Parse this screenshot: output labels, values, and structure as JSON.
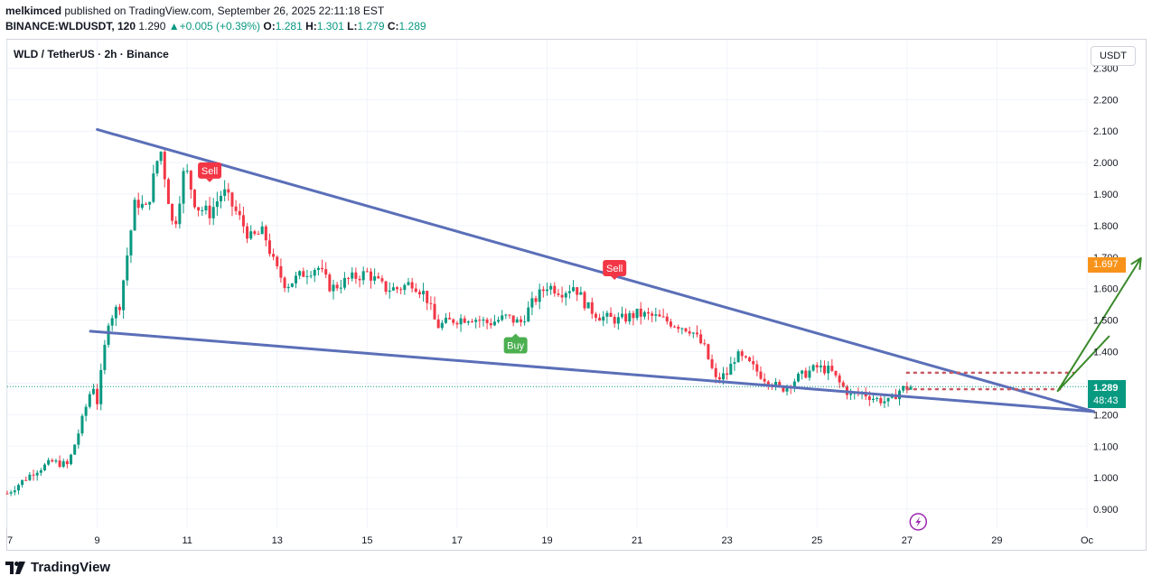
{
  "header": {
    "author": "melkimced",
    "published_text": " published on TradingView.com, September 26, 2025 22:11:18 EST",
    "ticker_interval": "BINANCE:WLDUSDT, 120",
    "last_price": "1.290",
    "change_icon": "triangle-up-icon",
    "change_text": "+0.005 (+0.39%)",
    "o_label": "O:",
    "o_value": "1.281",
    "h_label": "H:",
    "h_value": "1.301",
    "l_label": "L:",
    "l_value": "1.279",
    "c_label": "C:",
    "c_value": "1.289"
  },
  "symbol_title": "WLD / TetherUS · 2h · Binance",
  "currency_button": "USDT",
  "price_tags": {
    "target": "1.697",
    "last_price": "1.289",
    "countdown": "48:43"
  },
  "footer": {
    "brand": "TradingView",
    "logo_icon": "tradingview-logo-icon"
  },
  "colors": {
    "up": "#089981",
    "down": "#f23645",
    "trendline": "#5b6fb8",
    "arrow": "#3a8a2a",
    "target_tag": "#f7931a",
    "resistance_dots": "#c85a64",
    "lightning_icon": "#9c27b0"
  },
  "chart_data": {
    "type": "candlestick",
    "x_axis_ticks": [
      "7",
      "9",
      "11",
      "13",
      "15",
      "17",
      "19",
      "21",
      "23",
      "25",
      "27",
      "29",
      "Oc"
    ],
    "y_axis_ticks": [
      "0.900",
      "1.000",
      "1.100",
      "1.200",
      "1.300",
      "1.400",
      "1.500",
      "1.600",
      "1.700",
      "1.800",
      "1.900",
      "2.000",
      "2.100",
      "2.200",
      "2.300"
    ],
    "ylim": [
      0.84,
      2.39
    ],
    "xlim": [
      7,
      31
    ],
    "grid": true,
    "candle_interval": "2h",
    "price_path": [
      [
        7.0,
        0.95
      ],
      [
        7.6,
        1.02
      ],
      [
        8.0,
        1.05
      ],
      [
        8.35,
        1.04
      ],
      [
        8.6,
        1.15
      ],
      [
        8.9,
        1.3
      ],
      [
        9.0,
        1.24
      ],
      [
        9.25,
        1.5
      ],
      [
        9.5,
        1.55
      ],
      [
        9.85,
        1.88
      ],
      [
        10.1,
        1.85
      ],
      [
        10.4,
        2.05
      ],
      [
        10.7,
        1.78
      ],
      [
        10.95,
        1.99
      ],
      [
        11.2,
        1.86
      ],
      [
        11.5,
        1.84
      ],
      [
        11.8,
        1.91
      ],
      [
        12.1,
        1.84
      ],
      [
        12.4,
        1.76
      ],
      [
        12.7,
        1.78
      ],
      [
        12.95,
        1.67
      ],
      [
        13.2,
        1.61
      ],
      [
        13.6,
        1.65
      ],
      [
        13.9,
        1.67
      ],
      [
        14.2,
        1.6
      ],
      [
        14.6,
        1.63
      ],
      [
        15.0,
        1.65
      ],
      [
        15.4,
        1.6
      ],
      [
        15.7,
        1.6
      ],
      [
        16.0,
        1.62
      ],
      [
        16.3,
        1.58
      ],
      [
        16.55,
        1.48
      ],
      [
        16.9,
        1.5
      ],
      [
        17.3,
        1.51
      ],
      [
        17.7,
        1.49
      ],
      [
        18.1,
        1.51
      ],
      [
        18.4,
        1.49
      ],
      [
        18.7,
        1.56
      ],
      [
        19.0,
        1.61
      ],
      [
        19.35,
        1.59
      ],
      [
        19.6,
        1.61
      ],
      [
        19.9,
        1.54
      ],
      [
        20.2,
        1.51
      ],
      [
        20.6,
        1.5
      ],
      [
        21.0,
        1.52
      ],
      [
        21.4,
        1.51
      ],
      [
        21.8,
        1.49
      ],
      [
        22.2,
        1.47
      ],
      [
        22.5,
        1.41
      ],
      [
        22.75,
        1.31
      ],
      [
        23.0,
        1.33
      ],
      [
        23.2,
        1.39
      ],
      [
        23.5,
        1.36
      ],
      [
        23.8,
        1.32
      ],
      [
        24.2,
        1.28
      ],
      [
        24.6,
        1.32
      ],
      [
        25.0,
        1.35
      ],
      [
        25.3,
        1.34
      ],
      [
        25.5,
        1.3
      ],
      [
        25.75,
        1.26
      ],
      [
        26.0,
        1.27
      ],
      [
        26.3,
        1.25
      ],
      [
        26.6,
        1.24
      ],
      [
        26.85,
        1.28
      ],
      [
        27.1,
        1.29
      ]
    ],
    "trendlines": {
      "upper": [
        [
          9.0,
          2.105
        ],
        [
          31.15,
          1.21
        ]
      ],
      "lower": [
        [
          8.85,
          1.465
        ],
        [
          31.15,
          1.21
        ]
      ]
    },
    "resistance_dotted": [
      [
        27.0,
        1.333
      ],
      [
        30.7,
        1.333
      ]
    ],
    "support_dotted": [
      [
        27.0,
        1.281
      ],
      [
        30.4,
        1.281
      ]
    ],
    "projection_arrow": [
      [
        30.35,
        1.275
      ],
      [
        31.5,
        1.45
      ],
      [
        32.2,
        1.697
      ]
    ],
    "last_price_line": 1.289,
    "signals": [
      {
        "label": "Sell",
        "x": 11.5,
        "y": 1.975,
        "type": "sell"
      },
      {
        "label": "Sell",
        "x": 20.5,
        "y": 1.665,
        "type": "sell"
      },
      {
        "label": "Buy",
        "x": 18.3,
        "y": 1.42,
        "type": "buy"
      }
    ],
    "event_icon": {
      "name": "lightning-icon",
      "x": 27.25,
      "y": 0.86
    }
  }
}
